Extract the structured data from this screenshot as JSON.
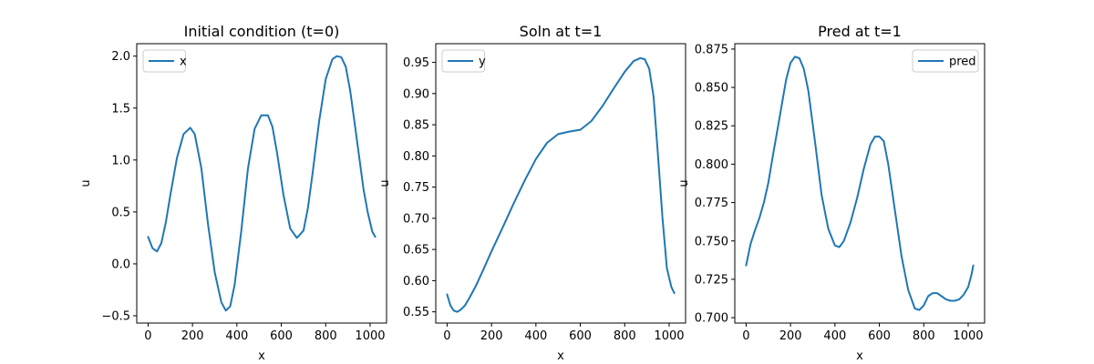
{
  "chart_data": [
    {
      "type": "line",
      "title": "Initial condition (t=0)",
      "xlabel": "x",
      "ylabel": "u",
      "xlim": [
        -51,
        1074
      ],
      "ylim": [
        -0.57,
        2.12
      ],
      "xticks": [
        0,
        200,
        400,
        600,
        800,
        1000
      ],
      "xtick_labels": [
        "0",
        "200",
        "400",
        "600",
        "800",
        "1000"
      ],
      "yticks": [
        -0.5,
        0.0,
        0.5,
        1.0,
        1.5,
        2.0
      ],
      "ytick_labels": [
        "−0.5",
        "0.0",
        "0.5",
        "1.0",
        "1.5",
        "2.0"
      ],
      "legend": "upper left",
      "series": [
        {
          "name": "x",
          "color": "#1f77b4",
          "x": [
            0,
            20,
            40,
            60,
            80,
            100,
            130,
            160,
            190,
            210,
            240,
            270,
            300,
            330,
            350,
            370,
            390,
            420,
            450,
            480,
            510,
            540,
            560,
            580,
            610,
            640,
            670,
            700,
            720,
            740,
            770,
            800,
            830,
            850,
            870,
            890,
            910,
            940,
            970,
            990,
            1010,
            1023
          ],
          "values": [
            0.26,
            0.15,
            0.12,
            0.2,
            0.4,
            0.66,
            1.02,
            1.25,
            1.31,
            1.25,
            0.92,
            0.38,
            -0.08,
            -0.37,
            -0.45,
            -0.41,
            -0.2,
            0.32,
            0.92,
            1.3,
            1.43,
            1.43,
            1.32,
            1.08,
            0.66,
            0.34,
            0.25,
            0.32,
            0.54,
            0.86,
            1.37,
            1.78,
            1.97,
            2.0,
            1.99,
            1.9,
            1.67,
            1.2,
            0.72,
            0.49,
            0.31,
            0.26
          ]
        }
      ]
    },
    {
      "type": "line",
      "title": "Soln at t=1",
      "xlabel": "x",
      "ylabel": "u",
      "xlim": [
        -51,
        1074
      ],
      "ylim": [
        0.532,
        0.98
      ],
      "xticks": [
        0,
        200,
        400,
        600,
        800,
        1000
      ],
      "xtick_labels": [
        "0",
        "200",
        "400",
        "600",
        "800",
        "1000"
      ],
      "yticks": [
        0.55,
        0.6,
        0.65,
        0.7,
        0.75,
        0.8,
        0.85,
        0.9,
        0.95
      ],
      "ytick_labels": [
        "0.55",
        "0.60",
        "0.65",
        "0.70",
        "0.75",
        "0.80",
        "0.85",
        "0.90",
        "0.95"
      ],
      "legend": "upper left",
      "series": [
        {
          "name": "y",
          "color": "#1f77b4",
          "x": [
            0,
            15,
            30,
            45,
            60,
            80,
            100,
            130,
            160,
            200,
            250,
            300,
            350,
            400,
            450,
            500,
            550,
            600,
            650,
            700,
            750,
            800,
            840,
            870,
            890,
            910,
            930,
            950,
            970,
            990,
            1010,
            1023
          ],
          "values": [
            0.578,
            0.56,
            0.552,
            0.55,
            0.553,
            0.56,
            0.572,
            0.592,
            0.615,
            0.647,
            0.685,
            0.724,
            0.761,
            0.795,
            0.821,
            0.835,
            0.839,
            0.842,
            0.856,
            0.88,
            0.908,
            0.935,
            0.952,
            0.957,
            0.955,
            0.94,
            0.895,
            0.8,
            0.7,
            0.62,
            0.59,
            0.58
          ]
        }
      ]
    },
    {
      "type": "line",
      "title": "Pred at t=1",
      "xlabel": "x",
      "ylabel": "u",
      "xlim": [
        -51,
        1074
      ],
      "ylim": [
        0.6965,
        0.8785
      ],
      "xticks": [
        0,
        200,
        400,
        600,
        800,
        1000
      ],
      "xtick_labels": [
        "0",
        "200",
        "400",
        "600",
        "800",
        "1000"
      ],
      "yticks": [
        0.7,
        0.725,
        0.75,
        0.775,
        0.8,
        0.825,
        0.85,
        0.875
      ],
      "ytick_labels": [
        "0.700",
        "0.725",
        "0.750",
        "0.775",
        "0.800",
        "0.825",
        "0.850",
        "0.875"
      ],
      "legend": "upper right",
      "series": [
        {
          "name": "pred",
          "color": "#1f77b4",
          "x": [
            0,
            20,
            40,
            60,
            80,
            100,
            120,
            150,
            180,
            200,
            220,
            240,
            260,
            280,
            310,
            340,
            370,
            400,
            420,
            440,
            470,
            500,
            530,
            560,
            580,
            600,
            620,
            640,
            670,
            700,
            730,
            760,
            780,
            800,
            820,
            840,
            860,
            880,
            900,
            920,
            940,
            960,
            980,
            1000,
            1015,
            1023
          ],
          "values": [
            0.734,
            0.748,
            0.757,
            0.765,
            0.775,
            0.788,
            0.805,
            0.83,
            0.855,
            0.866,
            0.87,
            0.869,
            0.862,
            0.848,
            0.815,
            0.78,
            0.758,
            0.747,
            0.746,
            0.75,
            0.762,
            0.778,
            0.797,
            0.813,
            0.818,
            0.818,
            0.815,
            0.8,
            0.77,
            0.74,
            0.718,
            0.706,
            0.705,
            0.708,
            0.714,
            0.716,
            0.716,
            0.714,
            0.712,
            0.711,
            0.711,
            0.712,
            0.715,
            0.72,
            0.728,
            0.734
          ]
        }
      ]
    }
  ]
}
